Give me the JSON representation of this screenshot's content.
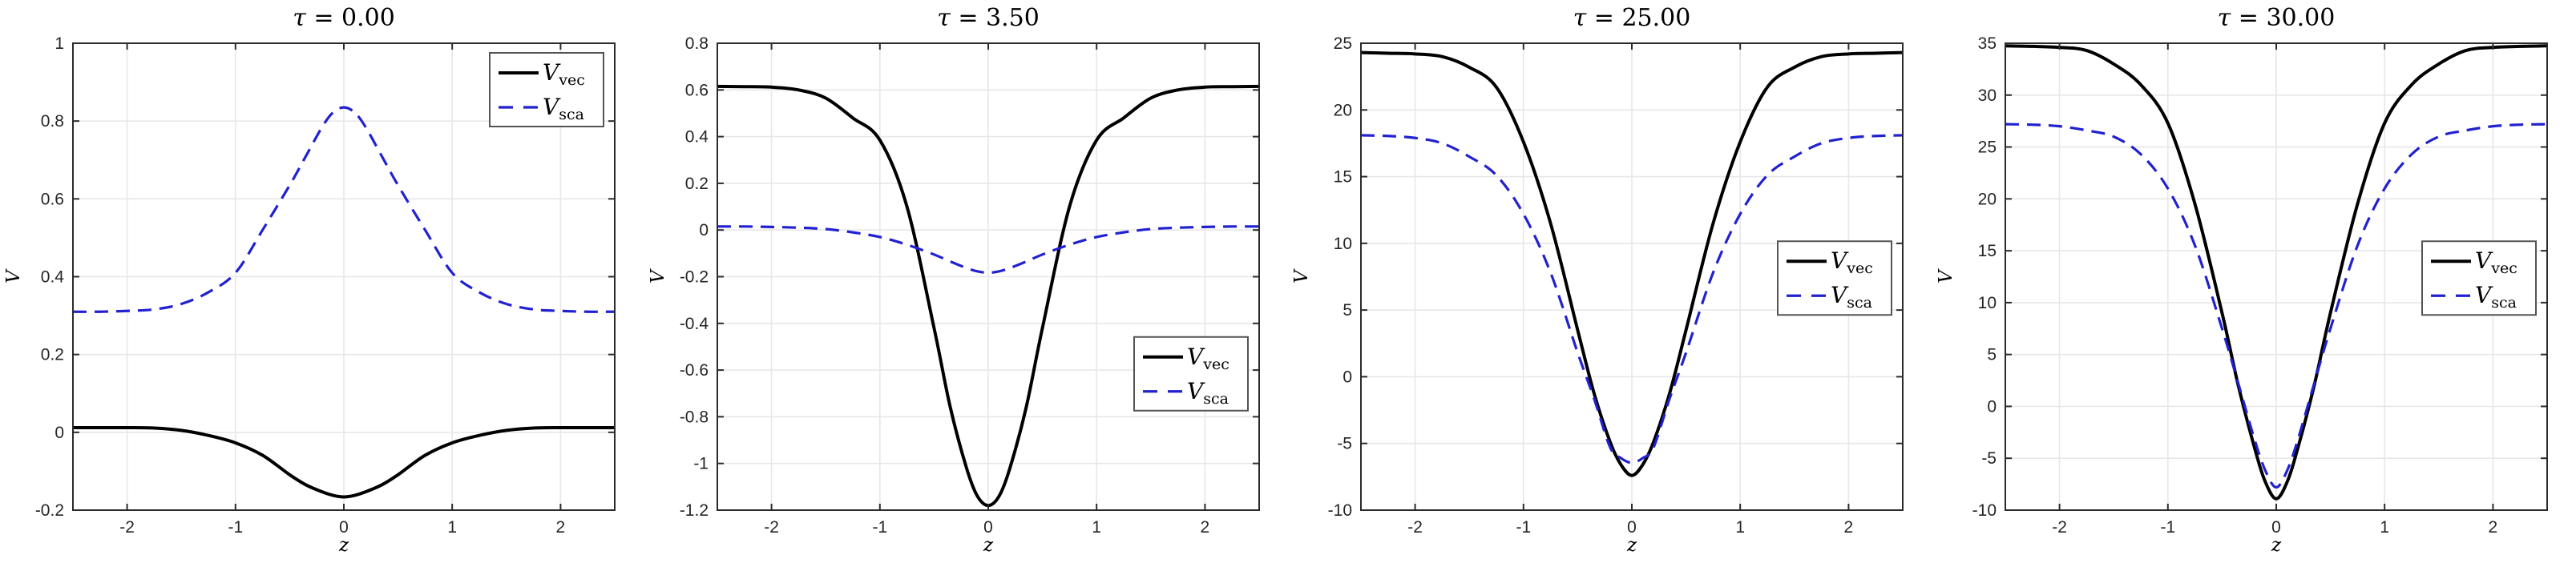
{
  "figure": {
    "background": "#ffffff",
    "axis_color": "#2b2b2b",
    "grid_color": "#e7e7e7",
    "tick_label_color": "#262626",
    "legend_border_color": "#545454",
    "series_colors": {
      "vec": "#000000",
      "sca": "#2121d1"
    },
    "line_widths": {
      "vec": 4,
      "sca": 3.2
    }
  },
  "chart_data": [
    {
      "type": "line",
      "title": "τ = 0.00",
      "title_tau": "τ",
      "title_rest": " = 0.00",
      "xlabel": "z",
      "ylabel": "V",
      "xlim": [
        -2.5,
        2.5
      ],
      "ylim": [
        -0.2,
        1
      ],
      "xticks": [
        -2,
        -1,
        0,
        1,
        2
      ],
      "yticks": [
        -0.2,
        0,
        0.2,
        0.4,
        0.6,
        0.8,
        1
      ],
      "ytick_labels": [
        "-0.2",
        "0",
        "0.2",
        "0.4",
        "0.6",
        "0.8",
        "1"
      ],
      "grid": true,
      "legend_position": "top-right",
      "x": [
        -2.5,
        -2.25,
        -2,
        -1.75,
        -1.5,
        -1.25,
        -1,
        -0.75,
        -0.5,
        -0.35,
        -0.2,
        -0.1,
        0,
        0.1,
        0.2,
        0.35,
        0.5,
        0.75,
        1,
        1.25,
        1.5,
        1.75,
        2,
        2.25,
        2.5
      ],
      "series": [
        {
          "name": "V_vec",
          "legend_main": "V",
          "legend_sub": "vec",
          "style": "solid",
          "color_key": "vec",
          "y": [
            0.012,
            0.012,
            0.012,
            0.011,
            0.005,
            -0.008,
            -0.027,
            -0.059,
            -0.109,
            -0.135,
            -0.153,
            -0.162,
            -0.166,
            -0.162,
            -0.153,
            -0.135,
            -0.109,
            -0.059,
            -0.027,
            -0.008,
            0.005,
            0.011,
            0.012,
            0.012,
            0.012
          ]
        },
        {
          "name": "V_sca",
          "legend_main": "V",
          "legend_sub": "sca",
          "style": "dashed",
          "color_key": "sca",
          "y": [
            0.31,
            0.31,
            0.312,
            0.316,
            0.33,
            0.36,
            0.41,
            0.52,
            0.635,
            0.71,
            0.785,
            0.822,
            0.835,
            0.822,
            0.785,
            0.71,
            0.635,
            0.52,
            0.41,
            0.36,
            0.33,
            0.316,
            0.312,
            0.31,
            0.31
          ]
        }
      ]
    },
    {
      "type": "line",
      "title": "τ = 3.50",
      "title_tau": "τ",
      "title_rest": " = 3.50",
      "xlabel": "z",
      "ylabel": "V",
      "xlim": [
        -2.5,
        2.5
      ],
      "ylim": [
        -1.2,
        0.8
      ],
      "xticks": [
        -2,
        -1,
        0,
        1,
        2
      ],
      "yticks": [
        -1.2,
        -1,
        -0.8,
        -0.6,
        -0.4,
        -0.2,
        0,
        0.2,
        0.4,
        0.6,
        0.8
      ],
      "ytick_labels": [
        "-1.2",
        "-1",
        "-0.8",
        "-0.6",
        "-0.4",
        "-0.2",
        "0",
        "0.2",
        "0.4",
        "0.6",
        "0.8"
      ],
      "grid": true,
      "legend_position": "right-lower",
      "x": [
        -2.5,
        -2.25,
        -2,
        -1.75,
        -1.5,
        -1.25,
        -1,
        -0.75,
        -0.5,
        -0.35,
        -0.2,
        -0.1,
        0,
        0.1,
        0.2,
        0.35,
        0.5,
        0.75,
        1,
        1.25,
        1.5,
        1.75,
        2,
        2.25,
        2.5
      ],
      "series": [
        {
          "name": "V_vec",
          "legend_main": "V",
          "legend_sub": "vec",
          "style": "solid",
          "color_key": "vec",
          "y": [
            0.615,
            0.614,
            0.612,
            0.6,
            0.565,
            0.48,
            0.385,
            0.1,
            -0.42,
            -0.76,
            -1.02,
            -1.14,
            -1.18,
            -1.14,
            -1.02,
            -0.76,
            -0.42,
            0.1,
            0.385,
            0.48,
            0.565,
            0.6,
            0.612,
            0.614,
            0.615
          ]
        },
        {
          "name": "V_sca",
          "legend_main": "V",
          "legend_sub": "sca",
          "style": "dashed",
          "color_key": "sca",
          "y": [
            0.015,
            0.015,
            0.013,
            0.01,
            0.004,
            -0.01,
            -0.03,
            -0.063,
            -0.105,
            -0.135,
            -0.163,
            -0.177,
            -0.183,
            -0.177,
            -0.163,
            -0.135,
            -0.105,
            -0.063,
            -0.03,
            -0.01,
            0.004,
            0.01,
            0.013,
            0.015,
            0.015
          ]
        }
      ]
    },
    {
      "type": "line",
      "title": "τ = 25.00",
      "title_tau": "τ",
      "title_rest": " = 25.00",
      "xlabel": "z",
      "ylabel": "V",
      "xlim": [
        -2.5,
        2.5
      ],
      "ylim": [
        -10,
        25
      ],
      "xticks": [
        -2,
        -1,
        0,
        1,
        2
      ],
      "yticks": [
        -10,
        -5,
        0,
        5,
        10,
        15,
        20,
        25
      ],
      "ytick_labels": [
        "-10",
        "-5",
        "0",
        "5",
        "10",
        "15",
        "20",
        "25"
      ],
      "grid": true,
      "legend_position": "right-center",
      "x": [
        -2.5,
        -2.25,
        -2,
        -1.75,
        -1.5,
        -1.25,
        -1,
        -0.75,
        -0.5,
        -0.35,
        -0.2,
        -0.1,
        0,
        0.1,
        0.2,
        0.35,
        0.5,
        0.75,
        1,
        1.25,
        1.5,
        1.75,
        2,
        2.25,
        2.5
      ],
      "series": [
        {
          "name": "V_vec",
          "legend_main": "V",
          "legend_sub": "vec",
          "style": "solid",
          "color_key": "vec",
          "y": [
            24.3,
            24.25,
            24.2,
            24.0,
            23.2,
            21.7,
            17.6,
            11.5,
            3.5,
            -1.2,
            -4.9,
            -6.6,
            -7.4,
            -6.6,
            -4.9,
            -1.2,
            3.5,
            11.5,
            17.6,
            21.7,
            23.2,
            24.0,
            24.2,
            24.25,
            24.3
          ]
        },
        {
          "name": "V_sca",
          "legend_main": "V",
          "legend_sub": "sca",
          "style": "dashed",
          "color_key": "sca",
          "y": [
            18.1,
            18.05,
            17.9,
            17.5,
            16.5,
            15.1,
            12.2,
            7.8,
            1.8,
            -1.6,
            -5.3,
            -6.1,
            -6.45,
            -6.1,
            -5.3,
            -1.6,
            1.8,
            7.8,
            12.2,
            15.1,
            16.5,
            17.5,
            17.9,
            18.05,
            18.1
          ]
        }
      ]
    },
    {
      "type": "line",
      "title": "τ = 30.00",
      "title_tau": "τ",
      "title_rest": " = 30.00",
      "xlabel": "z",
      "ylabel": "V",
      "xlim": [
        -2.5,
        2.5
      ],
      "ylim": [
        -10,
        35
      ],
      "xticks": [
        -2,
        -1,
        0,
        1,
        2
      ],
      "yticks": [
        -10,
        -5,
        0,
        5,
        10,
        15,
        20,
        25,
        30,
        35
      ],
      "ytick_labels": [
        "-10",
        "-5",
        "0",
        "5",
        "10",
        "15",
        "20",
        "25",
        "30",
        "35"
      ],
      "grid": true,
      "legend_position": "right-center",
      "x": [
        -2.5,
        -2.25,
        -2,
        -1.75,
        -1.5,
        -1.25,
        -1,
        -0.75,
        -0.5,
        -0.35,
        -0.2,
        -0.1,
        0,
        0.1,
        0.2,
        0.35,
        0.5,
        0.75,
        1,
        1.25,
        1.5,
        1.75,
        2,
        2.25,
        2.5
      ],
      "series": [
        {
          "name": "V_vec",
          "legend_main": "V",
          "legend_sub": "vec",
          "style": "solid",
          "color_key": "vec",
          "y": [
            34.75,
            34.7,
            34.6,
            34.3,
            33.0,
            31.0,
            27.3,
            19.5,
            9.0,
            2.0,
            -4.0,
            -7.3,
            -8.9,
            -7.3,
            -4.0,
            2.0,
            9.0,
            19.5,
            27.3,
            31.0,
            33.0,
            34.3,
            34.6,
            34.7,
            34.75
          ]
        },
        {
          "name": "V_sca",
          "legend_main": "V",
          "legend_sub": "sca",
          "style": "dashed",
          "color_key": "sca",
          "y": [
            27.2,
            27.15,
            27.0,
            26.6,
            26.0,
            24.3,
            21.0,
            15.5,
            7.5,
            2.2,
            -3.2,
            -6.2,
            -7.8,
            -6.2,
            -3.2,
            2.2,
            7.5,
            15.5,
            21.0,
            24.3,
            26.0,
            26.6,
            27.0,
            27.15,
            27.2
          ]
        }
      ]
    }
  ]
}
